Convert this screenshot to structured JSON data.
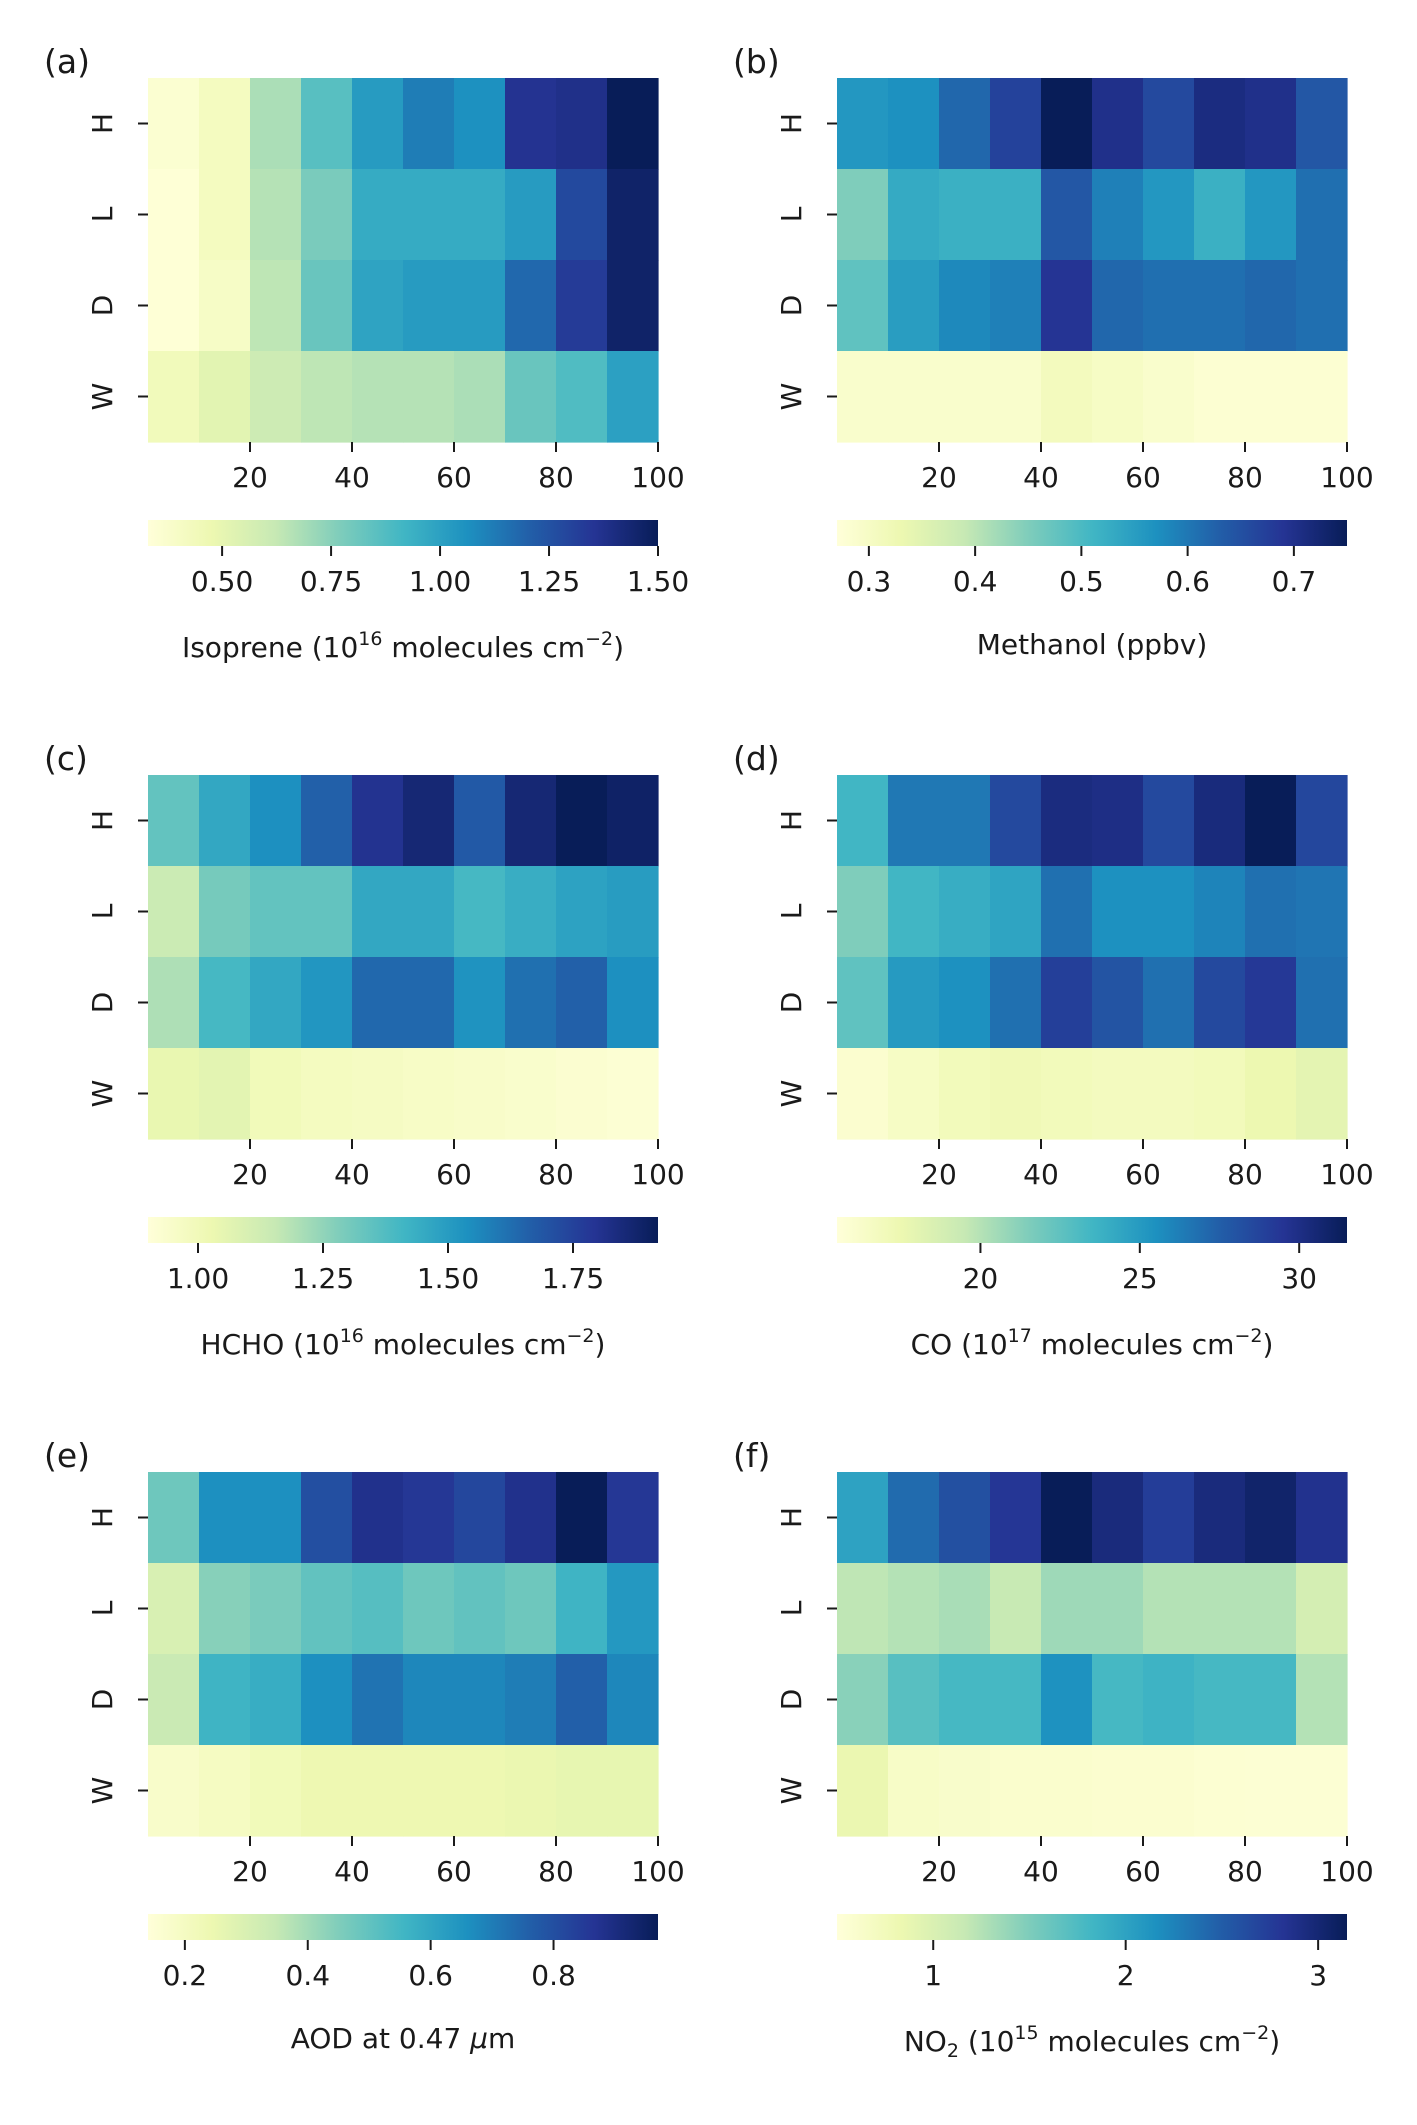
{
  "colormap": [
    "#ffffd9",
    "#edf8b1",
    "#c7e9b4",
    "#7fcdbb",
    "#41b6c4",
    "#1d91c0",
    "#225ea8",
    "#253494",
    "#081d58"
  ],
  "chart_data": [
    {
      "panel": "(a)",
      "type": "heatmap",
      "rows": [
        "H",
        "L",
        "D",
        "W"
      ],
      "x_ticks": [
        20,
        40,
        60,
        80,
        100
      ],
      "xlim": [
        0,
        100
      ],
      "n_columns": 10,
      "colorbar": {
        "vmin": 0.33,
        "vmax": 1.5,
        "ticks": [
          0.5,
          0.75,
          1.0,
          1.25,
          1.5
        ],
        "tick_labels": [
          "0.50",
          "0.75",
          "1.00",
          "1.25",
          "1.50"
        ]
      },
      "label": {
        "pre": "Isoprene (10",
        "sup1": "16",
        "mid": " molecules cm",
        "sup2": "−2",
        "post": ")"
      },
      "values": [
        [
          0.36,
          0.42,
          0.68,
          0.86,
          1.02,
          1.12,
          1.06,
          1.36,
          1.38,
          1.5
        ],
        [
          0.34,
          0.42,
          0.66,
          0.78,
          0.96,
          0.96,
          0.96,
          1.02,
          1.28,
          1.46
        ],
        [
          0.34,
          0.4,
          0.64,
          0.82,
          0.99,
          1.02,
          1.02,
          1.18,
          1.33,
          1.46
        ],
        [
          0.44,
          0.52,
          0.6,
          0.64,
          0.66,
          0.66,
          0.68,
          0.82,
          0.88,
          1.0
        ]
      ]
    },
    {
      "panel": "(b)",
      "type": "heatmap",
      "rows": [
        "H",
        "L",
        "D",
        "W"
      ],
      "x_ticks": [
        20,
        40,
        60,
        80,
        100
      ],
      "xlim": [
        0,
        100
      ],
      "n_columns": 10,
      "colorbar": {
        "vmin": 0.27,
        "vmax": 0.75,
        "ticks": [
          0.3,
          0.4,
          0.5,
          0.6,
          0.7
        ],
        "tick_labels": [
          "0.3",
          "0.4",
          "0.5",
          "0.6",
          "0.7"
        ]
      },
      "label": {
        "pre": "Methanol (ppbv)"
      },
      "values": [
        [
          0.56,
          0.57,
          0.62,
          0.67,
          0.75,
          0.7,
          0.66,
          0.71,
          0.7,
          0.64
        ],
        [
          0.45,
          0.53,
          0.52,
          0.52,
          0.64,
          0.59,
          0.56,
          0.52,
          0.56,
          0.61
        ],
        [
          0.48,
          0.55,
          0.58,
          0.59,
          0.69,
          0.62,
          0.61,
          0.61,
          0.62,
          0.61
        ],
        [
          0.29,
          0.29,
          0.29,
          0.29,
          0.31,
          0.3,
          0.29,
          0.28,
          0.28,
          0.28
        ]
      ]
    },
    {
      "panel": "(c)",
      "type": "heatmap",
      "rows": [
        "H",
        "L",
        "D",
        "W"
      ],
      "x_ticks": [
        20,
        40,
        60,
        80,
        100
      ],
      "xlim": [
        0,
        100
      ],
      "n_columns": 10,
      "colorbar": {
        "vmin": 0.9,
        "vmax": 1.92,
        "ticks": [
          1.0,
          1.25,
          1.5,
          1.75
        ],
        "tick_labels": [
          "1.00",
          "1.25",
          "1.50",
          "1.75"
        ]
      },
      "label": {
        "pre": "HCHO (10",
        "sup1": "16",
        "mid": " molecules cm",
        "sup2": "−2",
        "post": ")"
      },
      "values": [
        [
          1.34,
          1.46,
          1.54,
          1.66,
          1.8,
          1.86,
          1.68,
          1.86,
          1.92,
          1.89
        ],
        [
          1.14,
          1.3,
          1.34,
          1.34,
          1.46,
          1.46,
          1.4,
          1.44,
          1.48,
          1.5
        ],
        [
          1.2,
          1.4,
          1.46,
          1.52,
          1.64,
          1.64,
          1.53,
          1.62,
          1.66,
          1.54
        ],
        [
          1.04,
          1.06,
          1.0,
          0.98,
          0.97,
          0.96,
          0.95,
          0.94,
          0.93,
          0.92
        ]
      ]
    },
    {
      "panel": "(d)",
      "type": "heatmap",
      "rows": [
        "H",
        "L",
        "D",
        "W"
      ],
      "x_ticks": [
        20,
        40,
        60,
        80,
        100
      ],
      "xlim": [
        0,
        100
      ],
      "n_columns": 10,
      "colorbar": {
        "vmin": 15.5,
        "vmax": 31.5,
        "ticks": [
          20,
          25,
          30
        ],
        "tick_labels": [
          "20",
          "25",
          "30"
        ]
      },
      "label": {
        "pre": "CO (10",
        "sup1": "17",
        "mid": " molecules cm",
        "sup2": "−2",
        "post": ")"
      },
      "values": [
        [
          23.5,
          26.5,
          26.5,
          28.5,
          30.2,
          30.0,
          28.5,
          30.3,
          31.5,
          28.6
        ],
        [
          21.5,
          23.5,
          24.0,
          24.5,
          26.8,
          25.5,
          25.5,
          26.0,
          26.8,
          26.6
        ],
        [
          22.5,
          25.0,
          25.5,
          26.8,
          29.0,
          28.0,
          26.8,
          28.5,
          29.3,
          26.8
        ],
        [
          16.0,
          16.5,
          17.0,
          17.2,
          17.0,
          16.8,
          16.8,
          17.0,
          17.5,
          18.0
        ]
      ]
    },
    {
      "panel": "(e)",
      "type": "heatmap",
      "rows": [
        "H",
        "L",
        "D",
        "W"
      ],
      "x_ticks": [
        20,
        40,
        60,
        80,
        100
      ],
      "xlim": [
        0,
        100
      ],
      "n_columns": 10,
      "colorbar": {
        "vmin": 0.14,
        "vmax": 0.97,
        "ticks": [
          0.2,
          0.4,
          0.6,
          0.8
        ],
        "tick_labels": [
          "0.2",
          "0.4",
          "0.6",
          "0.8"
        ]
      },
      "label": {
        "pre": "AOD at 0.47 ",
        "italic": "μ",
        "post": "m"
      },
      "values": [
        [
          0.48,
          0.66,
          0.66,
          0.8,
          0.88,
          0.86,
          0.82,
          0.88,
          0.97,
          0.86
        ],
        [
          0.3,
          0.44,
          0.46,
          0.5,
          0.52,
          0.48,
          0.5,
          0.48,
          0.56,
          0.64
        ],
        [
          0.34,
          0.56,
          0.58,
          0.66,
          0.72,
          0.68,
          0.68,
          0.7,
          0.76,
          0.68
        ],
        [
          0.18,
          0.2,
          0.22,
          0.24,
          0.24,
          0.24,
          0.24,
          0.25,
          0.26,
          0.26
        ]
      ]
    },
    {
      "panel": "(f)",
      "type": "heatmap",
      "rows": [
        "H",
        "L",
        "D",
        "W"
      ],
      "x_ticks": [
        20,
        40,
        60,
        80,
        100
      ],
      "xlim": [
        0,
        100
      ],
      "n_columns": 10,
      "colorbar": {
        "vmin": 0.5,
        "vmax": 3.15,
        "ticks": [
          1,
          2,
          3
        ],
        "tick_labels": [
          "1",
          "2",
          "3"
        ]
      },
      "label": {
        "pre": "NO",
        "sub": "2",
        "mid0": " (10",
        "sup1": "15",
        "mid": " molecules cm",
        "sup2": "−2",
        "post": ")"
      },
      "values": [
        [
          2.0,
          2.4,
          2.6,
          2.8,
          3.15,
          2.95,
          2.75,
          2.95,
          3.05,
          2.85
        ],
        [
          1.2,
          1.25,
          1.3,
          1.15,
          1.35,
          1.35,
          1.25,
          1.25,
          1.25,
          1.05
        ],
        [
          1.45,
          1.7,
          1.8,
          1.8,
          2.15,
          1.8,
          1.85,
          1.8,
          1.8,
          1.25
        ],
        [
          0.85,
          0.65,
          0.62,
          0.6,
          0.6,
          0.58,
          0.58,
          0.56,
          0.55,
          0.55
        ]
      ]
    }
  ]
}
